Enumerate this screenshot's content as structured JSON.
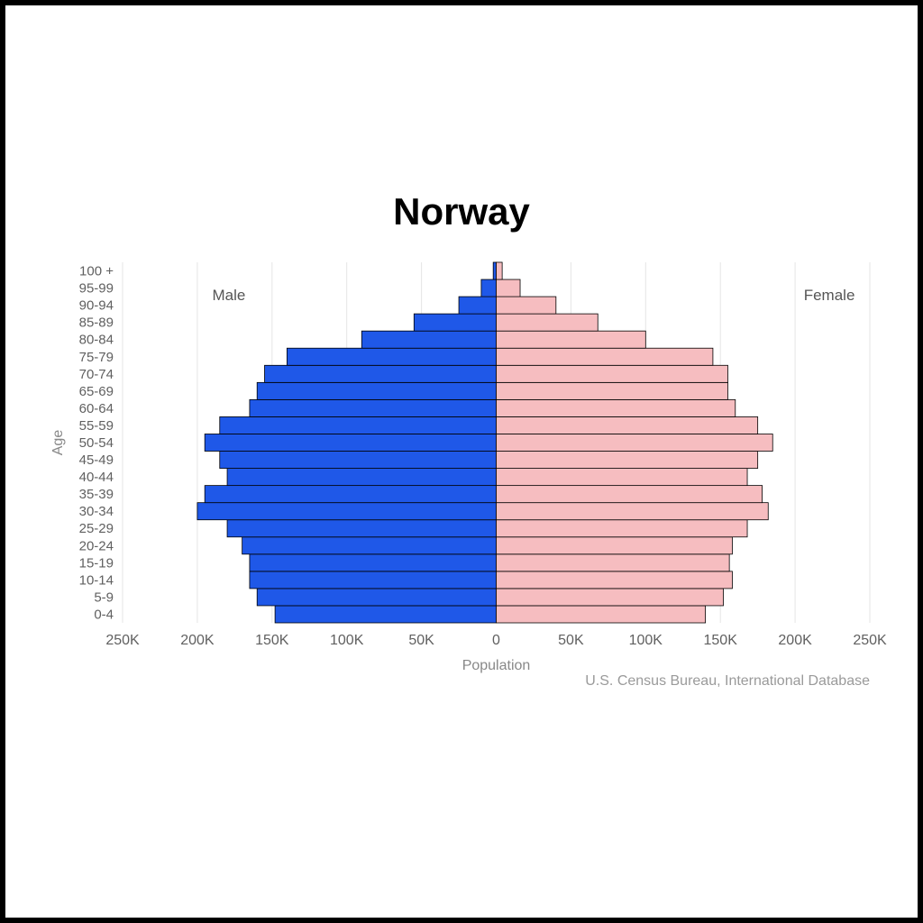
{
  "title": "Norway",
  "chart": {
    "type": "population-pyramid",
    "age_groups": [
      "0-4",
      "5-9",
      "10-14",
      "15-19",
      "20-24",
      "25-29",
      "30-34",
      "35-39",
      "40-44",
      "45-49",
      "50-54",
      "55-59",
      "60-64",
      "65-69",
      "70-74",
      "75-79",
      "80-84",
      "85-89",
      "90-94",
      "95-99",
      "100 +"
    ],
    "male": [
      148000,
      160000,
      165000,
      165000,
      170000,
      180000,
      200000,
      195000,
      180000,
      185000,
      195000,
      185000,
      165000,
      160000,
      155000,
      140000,
      90000,
      55000,
      25000,
      10000,
      2000
    ],
    "female": [
      140000,
      152000,
      158000,
      156000,
      158000,
      168000,
      182000,
      178000,
      168000,
      175000,
      185000,
      175000,
      160000,
      155000,
      155000,
      145000,
      100000,
      68000,
      40000,
      16000,
      4000
    ],
    "male_color": "#1f58e8",
    "female_color": "#f6bdc0",
    "bar_stroke": "#000000",
    "bar_stroke_width": 0.8,
    "grid_color": "#e5e5e5",
    "background_color": "#ffffff",
    "male_label": "Male",
    "female_label": "Female",
    "y_axis_label": "Age",
    "x_axis_label": "Population",
    "x_max": 250000,
    "x_ticks": [
      250000,
      200000,
      150000,
      100000,
      50000,
      0,
      50000,
      100000,
      150000,
      200000,
      250000
    ],
    "x_tick_labels": [
      "250K",
      "200K",
      "150K",
      "100K",
      "50K",
      "0",
      "50K",
      "100K",
      "150K",
      "200K",
      "250K"
    ],
    "title_fontsize": 42,
    "tick_fontsize": 15,
    "axis_label_fontsize": 16
  },
  "source": "U.S. Census Bureau, International Database"
}
